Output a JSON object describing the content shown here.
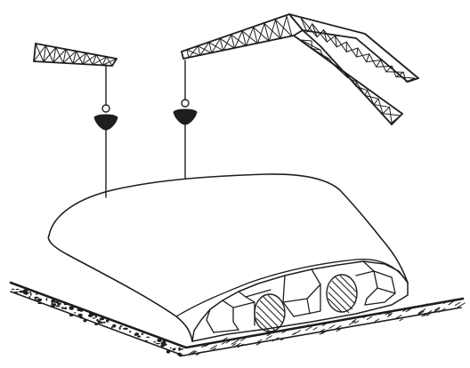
{
  "figure": {
    "subject": "",
    "colors": {
      "ink": "#1e1e1e",
      "paper": "#ffffff"
    },
    "icons": {
      "hook_left": "crane-hook-icon",
      "hook_right": "crane-hook-icon"
    }
  }
}
